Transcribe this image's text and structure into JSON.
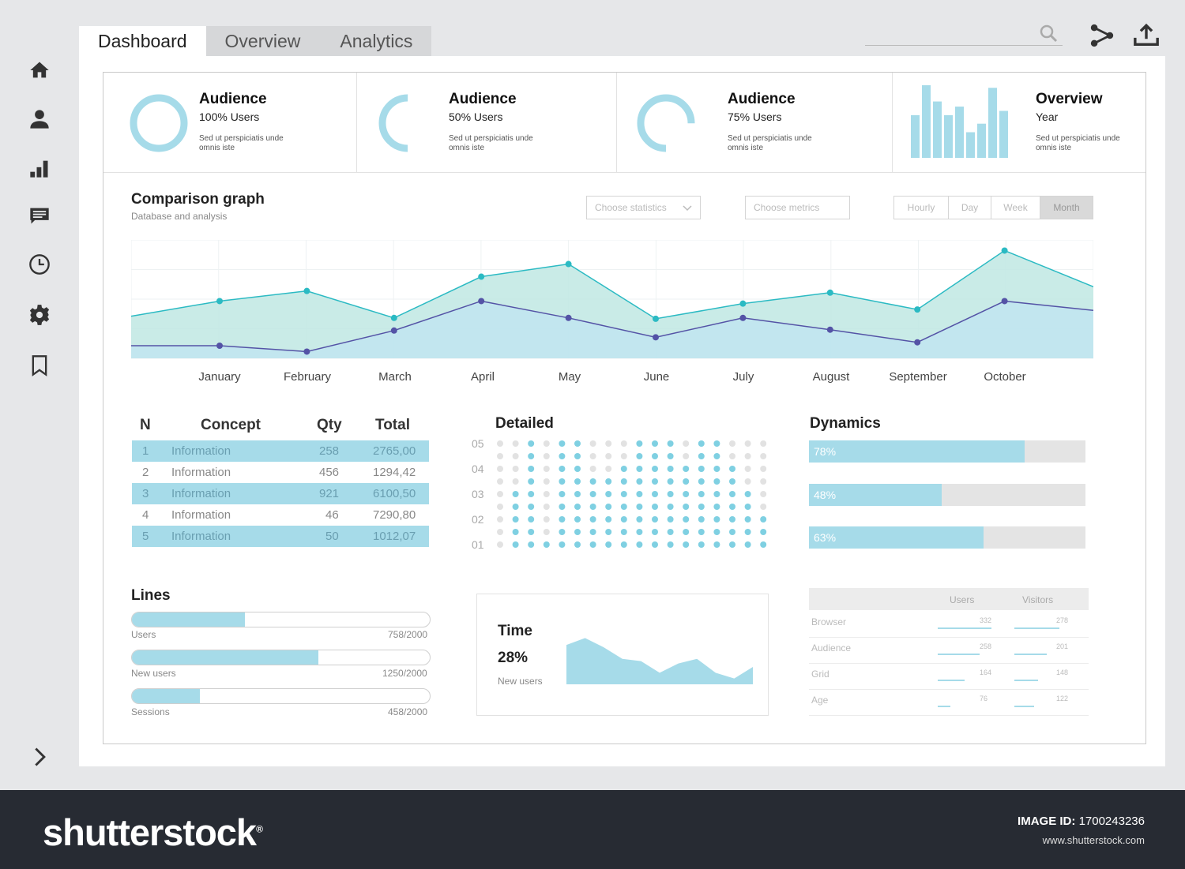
{
  "tabs": [
    {
      "label": "Dashboard",
      "active": true
    },
    {
      "label": "Overview",
      "active": false
    },
    {
      "label": "Analytics",
      "active": false
    }
  ],
  "sidebar": {
    "icons": [
      "home-icon",
      "user-icon",
      "bar-chart-icon",
      "message-icon",
      "clock-icon",
      "gear-icon",
      "bookmark-icon"
    ],
    "expand_icon": "chevron-right-icon"
  },
  "search": {
    "placeholder": ""
  },
  "colors": {
    "accent": "#a6dbe9",
    "teal": "#2bbac3",
    "purple": "#5453a6",
    "footer": "#272b33"
  },
  "cards": [
    {
      "title": "Audience",
      "subtitle": "100% Users",
      "desc": "Sed ut perspiciatis unde omnis iste",
      "percent": 100
    },
    {
      "title": "Audience",
      "subtitle": "50% Users",
      "desc": "Sed ut perspiciatis unde omnis iste",
      "percent": 50
    },
    {
      "title": "Audience",
      "subtitle": "75% Users",
      "desc": "Sed ut perspiciatis unde omnis iste",
      "percent": 75
    },
    {
      "title": "Overview",
      "subtitle": "Year",
      "desc": "Sed ut perspiciatis unde omnis iste"
    }
  ],
  "comparison": {
    "title": "Comparison graph",
    "subtitle": "Database and analysis",
    "select_statistics": "Choose statistics",
    "select_metrics": "Choose metrics",
    "ranges": [
      "Hourly",
      "Day",
      "Week",
      "Month"
    ],
    "active_range": "Month"
  },
  "chart_data": [
    {
      "type": "area",
      "categories": [
        "January",
        "February",
        "March",
        "April",
        "May",
        "June",
        "July",
        "August",
        "September",
        "October"
      ],
      "series": [
        {
          "values": [
            68,
            80,
            48,
            97,
            112,
            47,
            65,
            78,
            58,
            128
          ],
          "start": 50,
          "end": 85
        },
        {
          "values": [
            15,
            8,
            33,
            68,
            48,
            25,
            48,
            34,
            19,
            68
          ],
          "start": 15,
          "end": 57
        }
      ],
      "ylim": [
        0,
        135
      ],
      "grid": true
    },
    {
      "type": "bar",
      "categories": [
        "1",
        "2",
        "3",
        "4",
        "5",
        "6",
        "7",
        "8",
        "9"
      ],
      "values": [
        50,
        85,
        66,
        50,
        60,
        30,
        40,
        82,
        55
      ],
      "ylim": [
        0,
        85
      ]
    },
    {
      "type": "scatter",
      "columns": 18,
      "ytick_labels": [
        "05",
        "04",
        "03",
        "02",
        "01"
      ],
      "filled_counts": [
        0,
        5,
        10,
        1,
        13,
        9,
        6,
        6,
        7,
        9,
        10,
        10,
        7,
        12,
        10,
        7,
        5,
        3
      ]
    },
    {
      "type": "area",
      "values": [
        34,
        40,
        32,
        22,
        20,
        10,
        18,
        22,
        10,
        5,
        15
      ],
      "ylim": [
        0,
        45
      ]
    }
  ],
  "table": {
    "headers": [
      "N",
      "Concept",
      "Qty",
      "Total"
    ],
    "rows": [
      {
        "n": "1",
        "concept": "Information",
        "qty": "258",
        "total": "2765,00",
        "highlight": true
      },
      {
        "n": "2",
        "concept": "Information",
        "qty": "456",
        "total": "1294,42",
        "highlight": false
      },
      {
        "n": "3",
        "concept": "Information",
        "qty": "921",
        "total": "6100,50",
        "highlight": true
      },
      {
        "n": "4",
        "concept": "Information",
        "qty": "46",
        "total": "7290,80",
        "highlight": false
      },
      {
        "n": "5",
        "concept": "Information",
        "qty": "50",
        "total": "1012,07",
        "highlight": true
      }
    ]
  },
  "detailed": {
    "title": "Detailed"
  },
  "dynamics": {
    "title": "Dynamics",
    "bars": [
      {
        "label": "78%",
        "value": 0.78
      },
      {
        "label": "48%",
        "value": 0.48
      },
      {
        "label": "63%",
        "value": 0.63
      }
    ]
  },
  "lines": {
    "title": "Lines",
    "items": [
      {
        "label": "Users",
        "value_text": "758/2000",
        "value": 758,
        "max": 2000
      },
      {
        "label": "New users",
        "value_text": "1250/2000",
        "value": 1250,
        "max": 2000
      },
      {
        "label": "Sessions",
        "value_text": "458/2000",
        "value": 458,
        "max": 2000
      }
    ]
  },
  "time": {
    "title": "Time",
    "value": "28%",
    "label": "New users"
  },
  "mini_table": {
    "headers": [
      "Users",
      "Visitors"
    ],
    "rows": [
      {
        "name": "Browser",
        "users": "332",
        "visitors": "278",
        "users_v": 332,
        "visitors_v": 278
      },
      {
        "name": "Audience",
        "users": "258",
        "visitors": "201",
        "users_v": 258,
        "visitors_v": 201
      },
      {
        "name": "Grid",
        "users": "164",
        "visitors": "148",
        "users_v": 164,
        "visitors_v": 148
      },
      {
        "name": "Age",
        "users": "76",
        "visitors": "122",
        "users_v": 76,
        "visitors_v": 122
      }
    ]
  },
  "footer": {
    "brand": "shutterstock",
    "brand_mark": "®",
    "image_id_label": "IMAGE ID:",
    "image_id": "1700243236",
    "site": "www.shutterstock.com"
  }
}
